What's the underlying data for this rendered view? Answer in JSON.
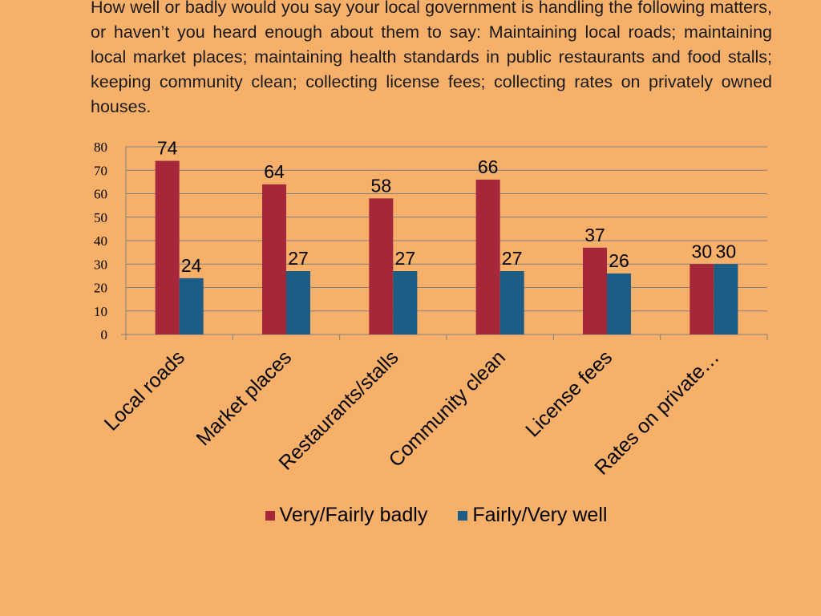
{
  "question": "How well or badly would you say your local government is handling the following matters, or haven’t you heard enough about them to say: Maintaining local roads; maintaining local market places; maintaining health standards in public restaurants and food stalls; keeping community clean; collecting license fees; collecting rates on privately owned houses.",
  "colors": {
    "background": "#F7B06A",
    "badly": "#A6263A",
    "well": "#1C5D85",
    "grid": "#808080"
  },
  "chart_data": {
    "type": "bar",
    "categories": [
      "Local roads",
      "Market places",
      "Restaurants/stalls",
      "Community clean",
      "License fees",
      "Rates on private…"
    ],
    "series": [
      {
        "name": "Very/Fairly badly",
        "values": [
          74,
          64,
          58,
          66,
          37,
          30
        ]
      },
      {
        "name": "Fairly/Very well",
        "values": [
          24,
          27,
          27,
          27,
          26,
          30
        ]
      }
    ],
    "ylim": [
      0,
      80
    ],
    "yticks": [
      0,
      10,
      20,
      30,
      40,
      50,
      60,
      70,
      80
    ],
    "grid": true,
    "legend_position": "bottom",
    "data_labels": true,
    "xlabel": "",
    "ylabel": ""
  }
}
